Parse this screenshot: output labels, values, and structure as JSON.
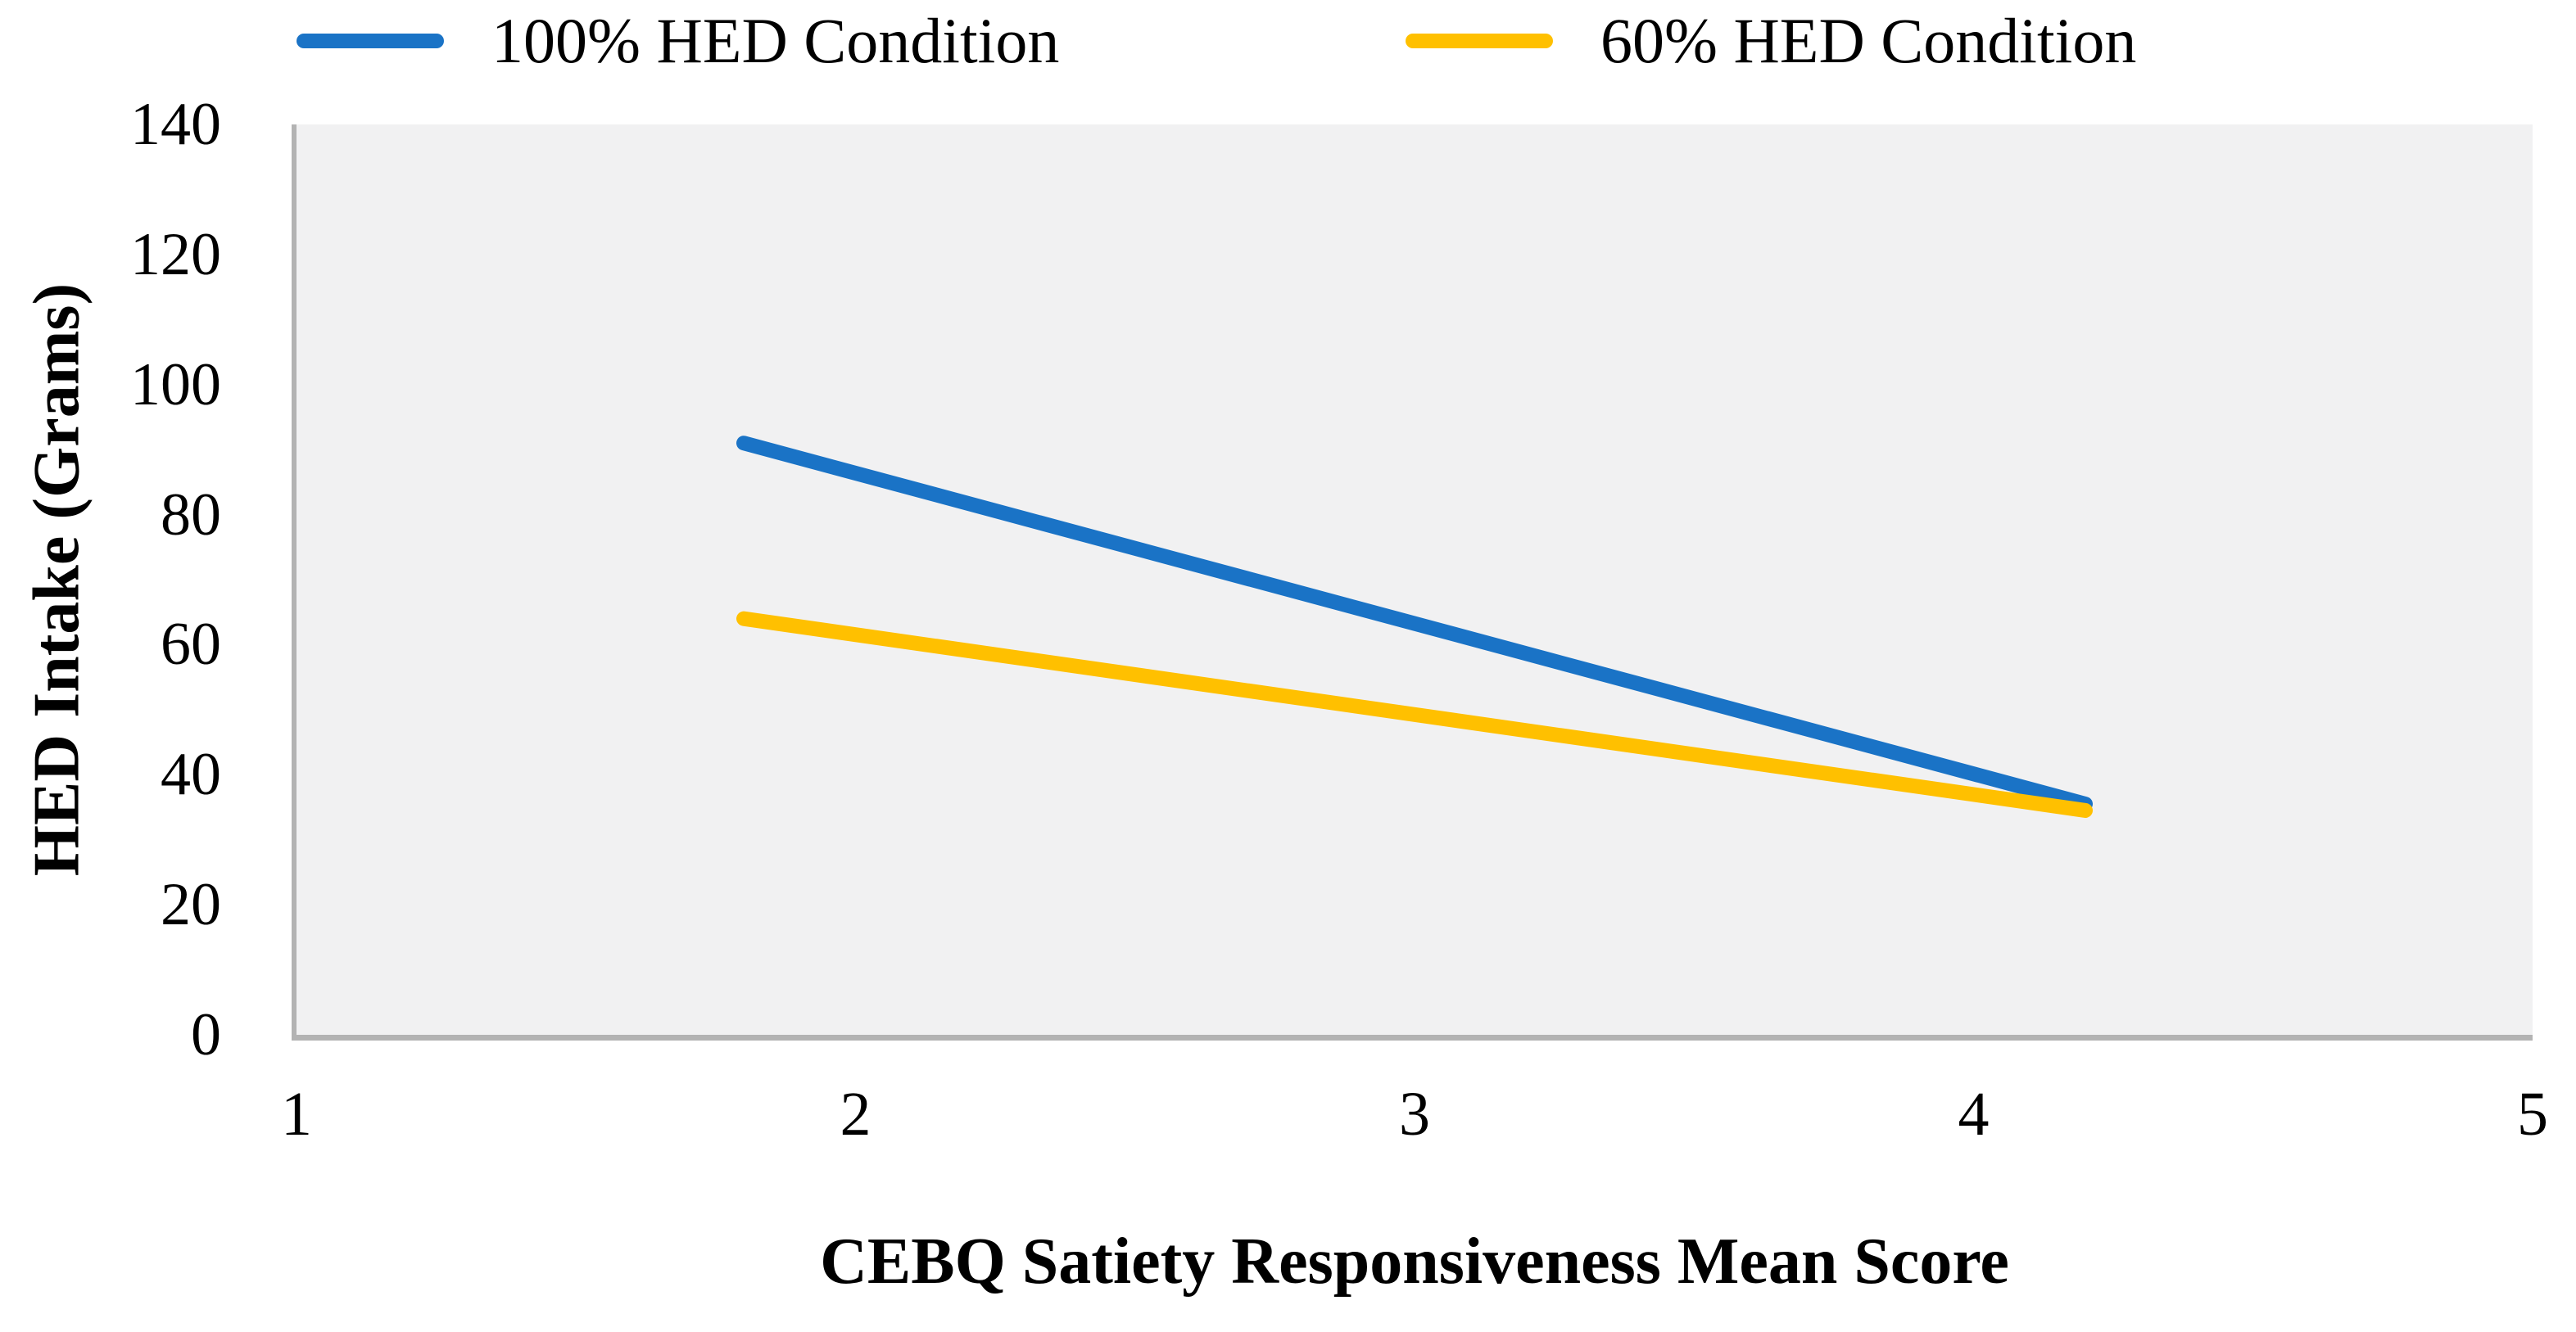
{
  "chart_data": {
    "type": "line",
    "title": "",
    "xlabel": "CEBQ Satiety Responsiveness Mean Score",
    "ylabel": "HED Intake (Grams)",
    "xlim": [
      1,
      5
    ],
    "ylim": [
      0,
      140
    ],
    "x_ticks": [
      1,
      2,
      3,
      4,
      5
    ],
    "y_ticks": [
      0,
      20,
      40,
      60,
      80,
      100,
      120,
      140
    ],
    "grid": false,
    "legend_position": "top",
    "plot_background": "#f1f1f2",
    "axis_line_color": "#b3b3b3",
    "line_width": 18,
    "series": [
      {
        "name": "100% HED Condition",
        "color": "#1a73c6",
        "points": [
          {
            "x": 1.8,
            "y": 91
          },
          {
            "x": 4.2,
            "y": 35.5
          }
        ]
      },
      {
        "name": "60% HED Condition",
        "color": "#ffc000",
        "points": [
          {
            "x": 1.8,
            "y": 64
          },
          {
            "x": 4.2,
            "y": 34.5
          }
        ]
      }
    ]
  }
}
